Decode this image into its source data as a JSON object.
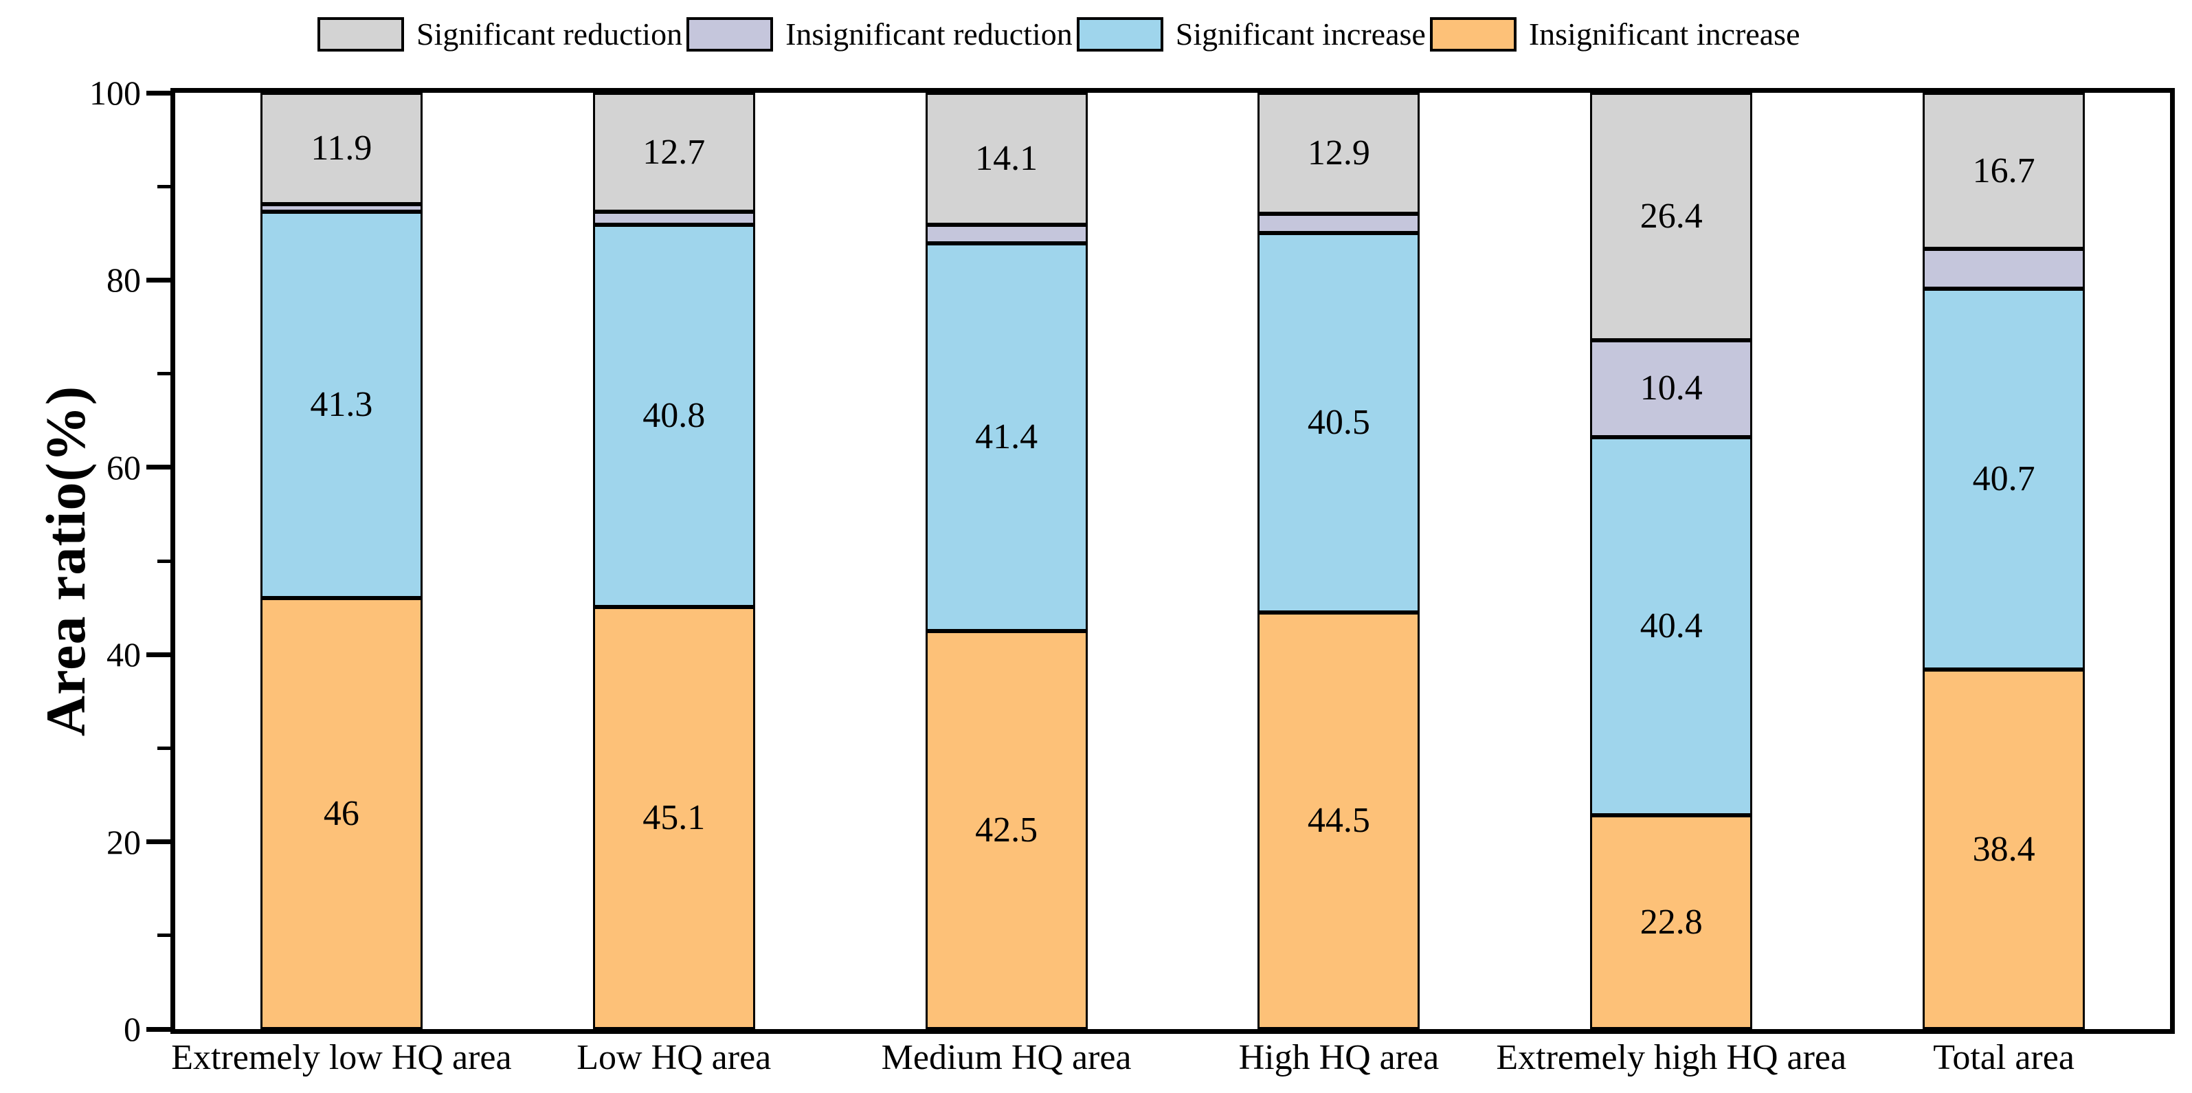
{
  "figure": {
    "background": "#ffffff"
  },
  "colors": {
    "significant_reduction": "#d3d3d3",
    "insignificant_reduction": "#c5c6dc",
    "significant_increase": "#9fd5ec",
    "insignificant_increase": "#fdc178",
    "axis": "#000000",
    "text": "#000000"
  },
  "legend": {
    "items": [
      {
        "label": "Significant reduction",
        "color": "#d3d3d3"
      },
      {
        "label": "Insignificant reduction",
        "color": "#c5c6dc"
      },
      {
        "label": "Significant increase",
        "color": "#9fd5ec"
      },
      {
        "label": "Insignificant increase",
        "color": "#fdc178"
      }
    ]
  },
  "axes": {
    "y_title": "Area ratio(%)",
    "y_major_ticks": [
      0,
      20,
      40,
      60,
      80,
      100
    ],
    "y_minor_ticks": [
      10,
      30,
      50,
      70,
      90
    ],
    "y_range": [
      0,
      100
    ]
  },
  "chart_data": {
    "type": "bar",
    "stacked": true,
    "title": "",
    "xlabel": "",
    "ylabel": "Area ratio(%)",
    "ylim": [
      0,
      100
    ],
    "grid": false,
    "legend_position": "top",
    "categories": [
      "Extremely low HQ area",
      "Low HQ area",
      "Medium HQ area",
      "High HQ area",
      "Extremely high HQ area",
      "Total area"
    ],
    "series": [
      {
        "name": "Insignificant increase",
        "color": "#fdc178",
        "values": [
          46,
          45.1,
          42.5,
          44.5,
          22.8,
          38.4
        ],
        "labels": [
          "46",
          "45.1",
          "42.5",
          "44.5",
          "22.8",
          "38.4"
        ]
      },
      {
        "name": "Significant increase",
        "color": "#9fd5ec",
        "values": [
          41.3,
          40.8,
          41.4,
          40.5,
          40.4,
          40.7
        ],
        "labels": [
          "41.3",
          "40.8",
          "41.4",
          "40.5",
          "40.4",
          "40.7"
        ]
      },
      {
        "name": "Insignificant reduction",
        "color": "#c5c6dc",
        "values": [
          0.8,
          1.4,
          2.0,
          2.1,
          10.4,
          4.2
        ],
        "labels": [
          null,
          null,
          null,
          null,
          "10.4",
          null
        ]
      },
      {
        "name": "Significant reduction",
        "color": "#d3d3d3",
        "values": [
          11.9,
          12.7,
          14.1,
          12.9,
          26.4,
          16.7
        ],
        "labels": [
          "11.9",
          "12.7",
          "14.1",
          "12.9",
          "26.4",
          "16.7"
        ]
      }
    ]
  }
}
